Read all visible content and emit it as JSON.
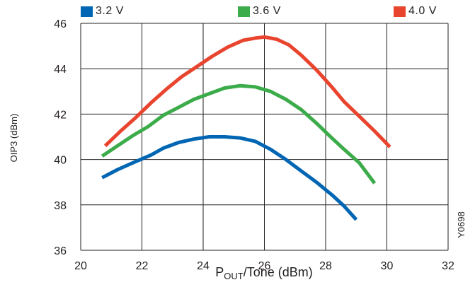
{
  "chart_data": {
    "type": "line",
    "xlabel_main": "P",
    "xlabel_sub": "OUT",
    "xlabel_rest": "/Tone (dBm)",
    "ylabel": "OIP3 (dBm)",
    "figure_id": "Y0698",
    "xlim": [
      20,
      32
    ],
    "ylim": [
      36,
      46
    ],
    "x_ticks": [
      "20",
      "22",
      "24",
      "26",
      "28",
      "30",
      "32"
    ],
    "y_ticks": [
      "36",
      "38",
      "40",
      "42",
      "44",
      "46"
    ],
    "grid": true,
    "legend_position": "top",
    "series": [
      {
        "name": "3.2 V",
        "color": "#0066b3",
        "points": [
          [
            20.7,
            39.2
          ],
          [
            21.2,
            39.55
          ],
          [
            21.7,
            39.85
          ],
          [
            22.3,
            40.2
          ],
          [
            22.7,
            40.5
          ],
          [
            23.2,
            40.75
          ],
          [
            23.7,
            40.9
          ],
          [
            24.2,
            41.0
          ],
          [
            24.7,
            41.0
          ],
          [
            25.2,
            40.95
          ],
          [
            25.7,
            40.8
          ],
          [
            26.2,
            40.45
          ],
          [
            26.7,
            40.0
          ],
          [
            27.2,
            39.5
          ],
          [
            27.7,
            39.0
          ],
          [
            28.2,
            38.45
          ],
          [
            28.6,
            37.95
          ],
          [
            29.0,
            37.35
          ]
        ]
      },
      {
        "name": "3.6 V",
        "color": "#3cab4a",
        "points": [
          [
            20.7,
            40.15
          ],
          [
            21.2,
            40.6
          ],
          [
            21.7,
            41.05
          ],
          [
            22.2,
            41.45
          ],
          [
            22.7,
            41.95
          ],
          [
            23.2,
            42.3
          ],
          [
            23.7,
            42.65
          ],
          [
            24.2,
            42.9
          ],
          [
            24.7,
            43.15
          ],
          [
            25.2,
            43.25
          ],
          [
            25.7,
            43.2
          ],
          [
            26.2,
            43.0
          ],
          [
            26.7,
            42.65
          ],
          [
            27.2,
            42.2
          ],
          [
            27.7,
            41.6
          ],
          [
            28.2,
            40.95
          ],
          [
            28.6,
            40.45
          ],
          [
            29.1,
            39.85
          ],
          [
            29.6,
            38.95
          ]
        ]
      },
      {
        "name": "4.0 V",
        "color": "#e8442e",
        "points": [
          [
            20.8,
            40.6
          ],
          [
            21.3,
            41.25
          ],
          [
            21.8,
            41.85
          ],
          [
            22.3,
            42.5
          ],
          [
            22.8,
            43.1
          ],
          [
            23.3,
            43.65
          ],
          [
            23.8,
            44.1
          ],
          [
            24.3,
            44.55
          ],
          [
            24.8,
            44.95
          ],
          [
            25.3,
            45.25
          ],
          [
            25.7,
            45.35
          ],
          [
            26.0,
            45.4
          ],
          [
            26.4,
            45.3
          ],
          [
            26.8,
            45.05
          ],
          [
            27.2,
            44.6
          ],
          [
            27.7,
            43.95
          ],
          [
            28.2,
            43.2
          ],
          [
            28.6,
            42.55
          ],
          [
            29.1,
            41.9
          ],
          [
            29.6,
            41.25
          ],
          [
            30.1,
            40.55
          ]
        ]
      }
    ]
  }
}
